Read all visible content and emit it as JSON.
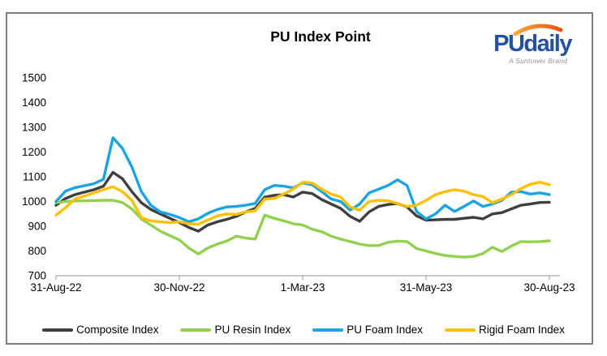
{
  "logo": {
    "text": "PUdaily",
    "tagline": "A Suntower Brand"
  },
  "chart_data": {
    "type": "line",
    "title": "PU Index Point",
    "xlabel": "",
    "ylabel": "",
    "grid": false,
    "legend_position": "bottom",
    "ylim": [
      700,
      1500
    ],
    "y_ticks": [
      700,
      800,
      900,
      1000,
      1100,
      1200,
      1300,
      1400,
      1500
    ],
    "x_tick_labels": [
      "31-Aug-22",
      "30-Nov-22",
      "1-Mar-23",
      "31-May-23",
      "30-Aug-23"
    ],
    "x_tick_days": [
      0,
      91,
      182,
      273,
      364
    ],
    "axis_color": "#a6a6a6",
    "text_color": "#000000",
    "days": [
      0,
      7,
      14,
      21,
      28,
      35,
      42,
      49,
      56,
      63,
      70,
      77,
      84,
      91,
      98,
      105,
      112,
      119,
      126,
      133,
      140,
      147,
      154,
      161,
      168,
      175,
      182,
      189,
      196,
      203,
      210,
      217,
      224,
      231,
      238,
      245,
      252,
      259,
      266,
      273,
      280,
      287,
      294,
      301,
      308,
      315,
      322,
      329,
      336,
      343,
      350,
      357,
      364
    ],
    "series": [
      {
        "name": "Composite Index",
        "color": "#3f3f3f",
        "values": [
          985,
          1012,
          1028,
          1038,
          1048,
          1062,
          1118,
          1092,
          1040,
          995,
          968,
          950,
          932,
          915,
          895,
          880,
          905,
          918,
          928,
          940,
          958,
          972,
          1018,
          1025,
          1028,
          1018,
          1038,
          1032,
          1008,
          990,
          972,
          940,
          920,
          958,
          980,
          988,
          992,
          978,
          942,
          925,
          926,
          928,
          928,
          932,
          936,
          930,
          950,
          955,
          970,
          985,
          990,
          996,
          997
        ]
      },
      {
        "name": "PU Resin Index",
        "color": "#92d050",
        "values": [
          995,
          1000,
          1002,
          1003,
          1004,
          1005,
          1005,
          996,
          970,
          930,
          905,
          880,
          862,
          845,
          812,
          788,
          812,
          828,
          840,
          860,
          852,
          848,
          945,
          932,
          922,
          910,
          905,
          888,
          878,
          860,
          848,
          838,
          828,
          822,
          822,
          835,
          840,
          838,
          810,
          800,
          790,
          782,
          778,
          775,
          778,
          790,
          815,
          798,
          820,
          838,
          837,
          838,
          841
        ]
      },
      {
        "name": "PU Foam Index",
        "color": "#1ba4e2",
        "values": [
          1000,
          1042,
          1056,
          1064,
          1072,
          1090,
          1258,
          1215,
          1140,
          1040,
          985,
          958,
          948,
          935,
          918,
          930,
          952,
          968,
          978,
          980,
          985,
          992,
          1048,
          1065,
          1062,
          1055,
          1075,
          1068,
          1040,
          1010,
          1000,
          965,
          990,
          1035,
          1050,
          1065,
          1088,
          1065,
          960,
          930,
          950,
          985,
          960,
          980,
          1002,
          980,
          990,
          1005,
          1038,
          1040,
          1030,
          1035,
          1028
        ]
      },
      {
        "name": "Rigid Foam Index",
        "color": "#ffc000",
        "values": [
          945,
          975,
          1010,
          1022,
          1035,
          1048,
          1060,
          1040,
          1005,
          935,
          922,
          918,
          915,
          918,
          910,
          908,
          925,
          942,
          950,
          948,
          958,
          963,
          1010,
          1012,
          1030,
          1050,
          1078,
          1075,
          1050,
          1030,
          1018,
          978,
          965,
          1000,
          1005,
          1003,
          992,
          980,
          985,
          1005,
          1028,
          1040,
          1048,
          1042,
          1028,
          1020,
          995,
          1010,
          1028,
          1052,
          1070,
          1078,
          1068
        ]
      }
    ]
  }
}
